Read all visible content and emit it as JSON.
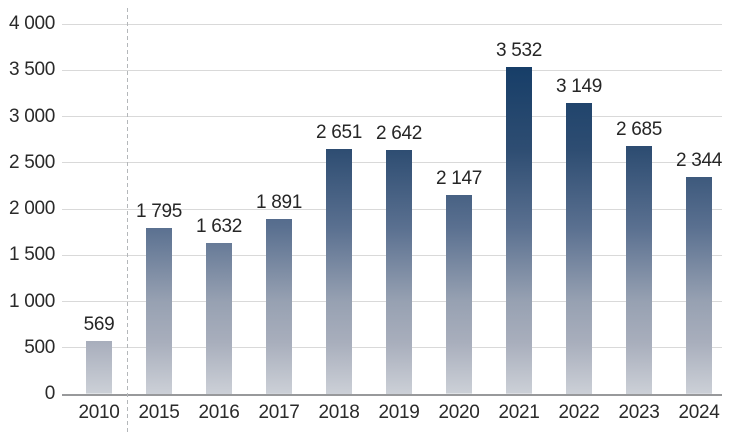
{
  "chart_data": {
    "type": "bar",
    "title": "",
    "categories": [
      "2010",
      "2015",
      "2016",
      "2017",
      "2018",
      "2019",
      "2020",
      "2021",
      "2022",
      "2023",
      "2024"
    ],
    "values": [
      569,
      1795,
      1632,
      1891,
      2651,
      2642,
      2147,
      3532,
      3149,
      2685,
      2344
    ],
    "value_labels": [
      "569",
      "1 795",
      "1 632",
      "1 891",
      "2 651",
      "2 642",
      "2 147",
      "3 532",
      "3 149",
      "2 685",
      "2 344"
    ],
    "xlabel": "",
    "ylabel": "",
    "ylim": [
      0,
      4000
    ],
    "y_ticks": [
      0,
      500,
      1000,
      1500,
      2000,
      2500,
      3000,
      3500,
      4000
    ],
    "y_tick_labels": [
      "0",
      "500",
      "1 000",
      "1 500",
      "2 000",
      "2 500",
      "3 000",
      "3 500",
      "4 000"
    ],
    "grid": true,
    "legend": "none",
    "separator_after_index": 0,
    "colors": {
      "bar_gradient_stops": [
        {
          "color": "#ccd0d7",
          "pos": "0%"
        },
        {
          "color": "#a8aebc",
          "pos": "14%"
        },
        {
          "color": "#97a1b2",
          "pos": "25%"
        },
        {
          "color": "#5a7090",
          "pos": "45%"
        },
        {
          "color": "#2e4d72",
          "pos": "66%"
        },
        {
          "color": "#173e68",
          "pos": "88%"
        },
        {
          "color": "#0d3761",
          "pos": "100%"
        }
      ],
      "gridline": "#d9d9d9",
      "axis_line": "#98999b",
      "separator_line": "#b4b7ba",
      "label_text": "#262626"
    }
  }
}
